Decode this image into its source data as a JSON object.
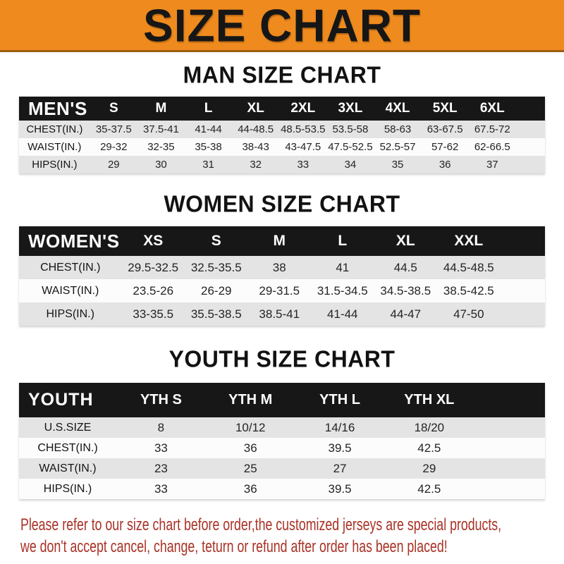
{
  "banner": {
    "title": "SIZE CHART"
  },
  "sections": [
    {
      "id": "men",
      "title": "MAN SIZE CHART",
      "header": {
        "label": "MEN'S",
        "columns": [
          "S",
          "M",
          "L",
          "XL",
          "2XL",
          "3XL",
          "4XL",
          "5XL",
          "6XL"
        ]
      },
      "rows": [
        {
          "label": "CHEST(IN.)",
          "values": [
            "35-37.5",
            "37.5-41",
            "41-44",
            "44-48.5",
            "48.5-53.5",
            "53.5-58",
            "58-63",
            "63-67.5",
            "67.5-72"
          ]
        },
        {
          "label": "WAIST(IN.)",
          "values": [
            "29-32",
            "32-35",
            "35-38",
            "38-43",
            "43-47.5",
            "47.5-52.5",
            "52.5-57",
            "57-62",
            "62-66.5"
          ]
        },
        {
          "label": "HIPS(IN.)",
          "values": [
            "29",
            "30",
            "31",
            "32",
            "33",
            "34",
            "35",
            "36",
            "37"
          ]
        }
      ]
    },
    {
      "id": "women",
      "title": "WOMEN SIZE CHART",
      "header": {
        "label": "WOMEN'S",
        "columns": [
          "XS",
          "S",
          "M",
          "L",
          "XL",
          "XXL"
        ]
      },
      "rows": [
        {
          "label": "CHEST(IN.)",
          "values": [
            "29.5-32.5",
            "32.5-35.5",
            "38",
            "41",
            "44.5",
            "44.5-48.5"
          ]
        },
        {
          "label": "WAIST(IN.)",
          "values": [
            "23.5-26",
            "26-29",
            "29-31.5",
            "31.5-34.5",
            "34.5-38.5",
            "38.5-42.5"
          ]
        },
        {
          "label": "HIPS(IN.)",
          "values": [
            "33-35.5",
            "35.5-38.5",
            "38.5-41",
            "41-44",
            "44-47",
            "47-50"
          ]
        }
      ]
    },
    {
      "id": "youth",
      "title": "YOUTH SIZE CHART",
      "header": {
        "label": "YOUTH",
        "columns": [
          "YTH S",
          "YTH M",
          "YTH L",
          "YTH XL"
        ]
      },
      "rows": [
        {
          "label": "U.S.SIZE",
          "values": [
            "8",
            "10/12",
            "14/16",
            "18/20"
          ]
        },
        {
          "label": "CHEST(IN.)",
          "values": [
            "33",
            "36",
            "39.5",
            "42.5"
          ]
        },
        {
          "label": "WAIST(IN.)",
          "values": [
            "23",
            "25",
            "27",
            "29"
          ]
        },
        {
          "label": "HIPS(IN.)",
          "values": [
            "33",
            "36",
            "39.5",
            "42.5"
          ]
        }
      ]
    }
  ],
  "footer": {
    "line1": "Please refer to our size chart before order,the customized jerseys are special products,",
    "line2": "we don't accept cancel, change, teturn or refund after order has been placed!"
  },
  "colors": {
    "banner_bg": "#EE8A1E",
    "banner_text": "#161616",
    "table_band_bg": "#171717",
    "table_band_text": "#FFFFFF",
    "row_alt_bg": "#E4E4E5",
    "row_bg": "#FCFCFC",
    "footer_text": "#A93226"
  }
}
